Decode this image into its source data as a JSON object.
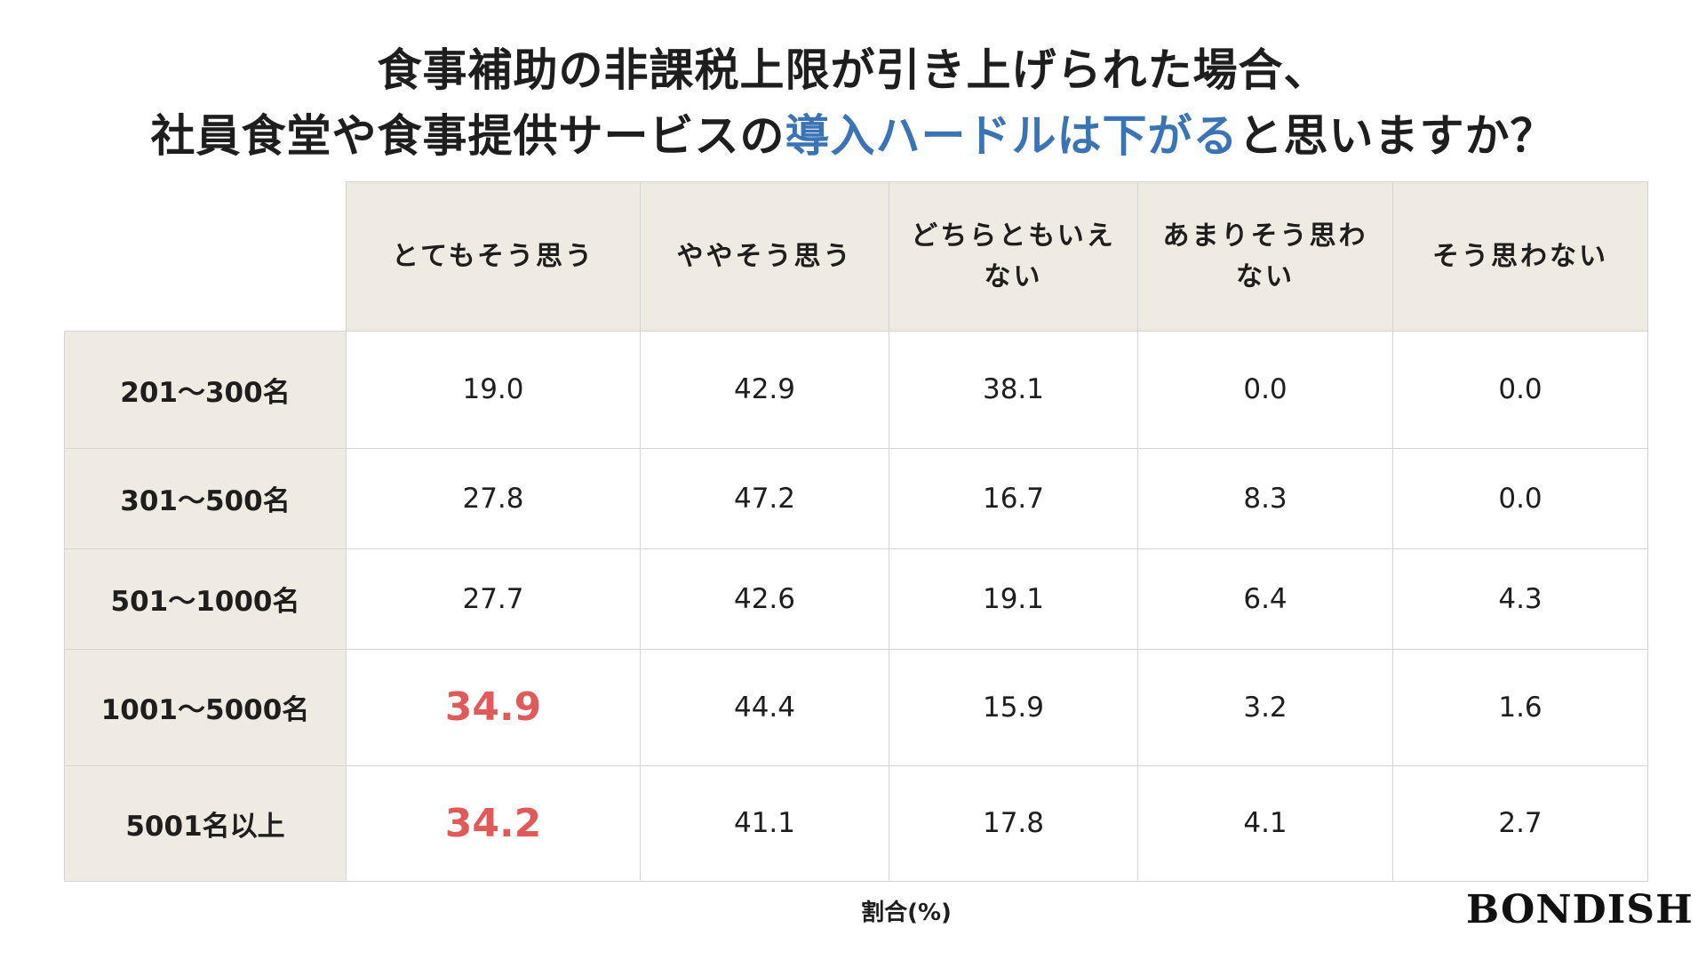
{
  "title": {
    "line1": "食事補助の非課税上限が引き上げられた場合、",
    "line2_pre": "社員食堂や食事提供サービスの",
    "line2_highlight": "導入ハードルは下がる",
    "line2_post": "と思いますか？",
    "highlight_color": "#3a74b5"
  },
  "chart_data": {
    "type": "table",
    "columns": [
      "とてもそう思う",
      "ややそう思う",
      "どちらともいえない",
      "あまりそう思わない",
      "そう思わない"
    ],
    "rows": [
      {
        "label": "201〜300名",
        "values": [
          "19.0",
          "42.9",
          "38.1",
          "0.0",
          "0.0"
        ]
      },
      {
        "label": "301〜500名",
        "values": [
          "27.8",
          "47.2",
          "16.7",
          "8.3",
          "0.0"
        ]
      },
      {
        "label": "501〜1000名",
        "values": [
          "27.7",
          "42.6",
          "19.1",
          "6.4",
          "4.3"
        ]
      },
      {
        "label": "1001〜5000名",
        "values": [
          "34.9",
          "44.4",
          "15.9",
          "3.2",
          "1.6"
        ]
      },
      {
        "label": "5001名以上",
        "values": [
          "34.2",
          "41.1",
          "17.8",
          "4.1",
          "2.7"
        ]
      }
    ],
    "highlighted_cells": [
      {
        "row": 3,
        "col": 0
      },
      {
        "row": 4,
        "col": 0
      }
    ],
    "highlight_text_color": "#e05a5a",
    "highlight_underline_color": "#f7ef3c",
    "header_background": "#efebe3",
    "unit_label": "割合(%)"
  },
  "brand": {
    "logo_text": "BONDISH"
  }
}
